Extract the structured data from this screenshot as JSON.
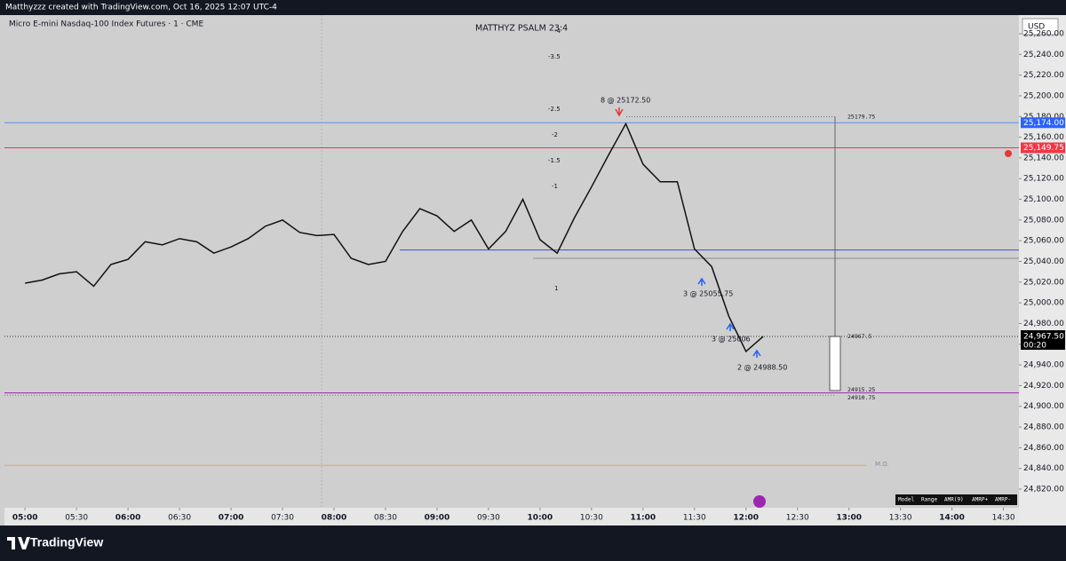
{
  "header": {
    "byline": "Matthyzzz created with TradingView.com, Oct 16, 2025 12:07 UTC-4",
    "brand": "TradingView"
  },
  "symbol": "Micro E-mini Nasdaq-100 Index Futures · 1 · CME",
  "currency": "USD",
  "indicator": {
    "title": "MATTHYZ PSALM 23:4",
    "scale": [
      "-4",
      "-3.5",
      "-2.5",
      "-2",
      "-1.5",
      "-1",
      "1"
    ],
    "mo_label": "M.O.",
    "table": [
      "Model",
      "Range",
      "AMR(9)",
      "AMRP+",
      "AMRP-"
    ]
  },
  "executions": [
    "8 @ 25172.50",
    "3 @ 25055.75",
    "3 @ 25006",
    "2 @ 24988.50"
  ],
  "chart_data": {
    "type": "line",
    "color": "#111111",
    "x": [
      "05:00",
      "05:10",
      "05:20",
      "05:30",
      "05:40",
      "05:50",
      "06:00",
      "06:10",
      "06:20",
      "06:30",
      "06:40",
      "06:50",
      "07:00",
      "07:10",
      "07:20",
      "07:30",
      "07:40",
      "07:50",
      "08:00",
      "08:10",
      "08:20",
      "08:30",
      "08:40",
      "08:50",
      "09:00",
      "09:10",
      "09:20",
      "09:30",
      "09:40",
      "09:50",
      "10:00",
      "10:10",
      "10:20",
      "10:30",
      "10:40",
      "10:50",
      "11:00",
      "11:10",
      "11:20",
      "11:30",
      "11:40",
      "11:50",
      "12:00",
      "12:10"
    ],
    "values": [
      25019,
      25022,
      25028,
      25030,
      25016,
      25037,
      25042,
      25059,
      25056,
      25062,
      25059,
      25048,
      25054,
      25062,
      25074,
      25080,
      25068,
      25065,
      25066,
      25043,
      25037,
      25040,
      25069,
      25091,
      25084,
      25069,
      25080,
      25052,
      25069,
      25100,
      25061,
      25048,
      25082,
      25112,
      25143,
      25173,
      25134,
      25117,
      25117,
      25052,
      25035,
      24987,
      24953,
      24967.5
    ],
    "xlim": [
      "04:48",
      "14:39"
    ],
    "xticks": [
      "05:00",
      "05:30",
      "06:00",
      "06:30",
      "07:00",
      "07:30",
      "08:00",
      "08:30",
      "09:00",
      "09:30",
      "10:00",
      "10:30",
      "11:00",
      "11:30",
      "12:00",
      "12:30",
      "13:00",
      "13:30",
      "14:00",
      "14:30"
    ],
    "ylim": [
      24802,
      25278
    ],
    "yticks": [
      {
        "value": 24820,
        "label": "24,820.00"
      },
      {
        "value": 24840,
        "label": "24,840.00"
      },
      {
        "value": 24860,
        "label": "24,860.00"
      },
      {
        "value": 24880,
        "label": "24,880.00"
      },
      {
        "value": 24900,
        "label": "24,900.00"
      },
      {
        "value": 24920,
        "label": "24,920.00"
      },
      {
        "value": 24940,
        "label": "24,940.00"
      },
      {
        "value": 24960,
        "label": "24,960.00"
      },
      {
        "value": 24980,
        "label": "24,980.00"
      },
      {
        "value": 25000,
        "label": "25,000.00"
      },
      {
        "value": 25020,
        "label": "25,020.00"
      },
      {
        "value": 25040,
        "label": "25,040.00"
      },
      {
        "value": 25060,
        "label": "25,060.00"
      },
      {
        "value": 25080,
        "label": "25,080.00"
      },
      {
        "value": 25100,
        "label": "25,100.00"
      },
      {
        "value": 25120,
        "label": "25,120.00"
      },
      {
        "value": 25140,
        "label": "25,140.00"
      },
      {
        "value": 25160,
        "label": "25,160.00"
      },
      {
        "value": 25180,
        "label": "25,180.00"
      },
      {
        "value": 25200,
        "label": "25,200.00"
      },
      {
        "value": 25220,
        "label": "25,220.00"
      },
      {
        "value": 25240,
        "label": "25,240.00"
      },
      {
        "value": 25260,
        "label": "25,260.00"
      }
    ],
    "levels": [
      {
        "value": 25174,
        "color": "#5b8fe8",
        "label": "25,174.00",
        "tag": "#2962ff"
      },
      {
        "value": 25149.75,
        "color": "#f23645",
        "label": "25,149.75",
        "tag": "#f23645"
      },
      {
        "value": 25051,
        "color": "#3d4fd0"
      },
      {
        "value": 25043,
        "color": "#8a8a8a"
      },
      {
        "value": 24913,
        "color": "#9c27b0"
      },
      {
        "value": 24843,
        "color": "#f5a05a"
      }
    ],
    "range_levels": [
      25179.75,
      24967.5,
      24915.25,
      24910.75
    ],
    "last_price": {
      "value": 24967.5,
      "label": "24,967.50",
      "countdown": "00:20"
    }
  }
}
